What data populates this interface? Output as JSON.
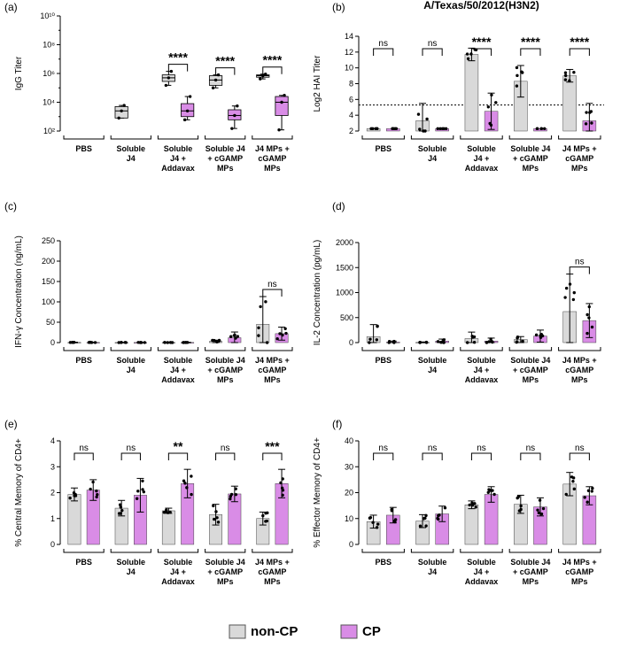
{
  "colors": {
    "noncp": "#d9d9d9",
    "cp": "#d98ce6",
    "axis": "#000000"
  },
  "legend": {
    "noncp": "non-CP",
    "cp": "CP"
  },
  "chart_data": [
    {
      "id": "a",
      "panel_label": "(a)",
      "type": "box",
      "title": "",
      "ylabel": "IgG Titer",
      "yscale": "log",
      "ylim": [
        100,
        10000000000
      ],
      "ytick_labels": [
        "10²",
        "10⁴",
        "10⁶",
        "10⁸",
        "10¹⁰"
      ],
      "groups": [
        "PBS",
        "Soluble J4",
        "Soluble J4 + Addavax",
        "Soluble J4 + cGAMP MPs",
        "J4 MPs + cGAMP MPs"
      ],
      "series": [
        {
          "name": "non-CP",
          "boxes": [
            null,
            [
              800,
              800,
              2500,
              5000,
              6000
            ],
            [
              150000,
              280000,
              500000,
              800000,
              1400000
            ],
            [
              100000,
              150000,
              350000,
              700000,
              800000
            ],
            [
              420000,
              550000,
              700000,
              800000,
              900000
            ]
          ]
        },
        {
          "name": "CP",
          "boxes": [
            null,
            null,
            [
              600,
              1000,
              2500,
              8000,
              25000
            ],
            [
              150,
              600,
              1200,
              3000,
              5500
            ],
            [
              120,
              1200,
              10000,
              25000,
              30000
            ]
          ]
        }
      ],
      "annotations": [
        null,
        null,
        "****",
        "****",
        "****"
      ]
    },
    {
      "id": "b",
      "panel_label": "(b)",
      "type": "bar",
      "title": "A/Texas/50/2012(H3N2)",
      "ylabel": "Log2 HAI Titer",
      "ylim": [
        2,
        14
      ],
      "yticks": [
        2,
        4,
        6,
        8,
        10,
        12,
        14
      ],
      "threshold": 5.3,
      "groups": [
        "PBS",
        "Soluble J4",
        "Soluble J4 + Addavax",
        "Soluble J4 + cGAMP MPs",
        "J4 MPs + cGAMP MPs"
      ],
      "series": [
        {
          "name": "non-CP",
          "values": [
            2.3,
            3.3,
            11.7,
            8.3,
            9.0
          ],
          "errors": [
            0,
            2.2,
            0.8,
            2.0,
            0.8
          ]
        },
        {
          "name": "CP",
          "values": [
            2.3,
            2.3,
            4.5,
            2.3,
            3.3
          ],
          "errors": [
            0,
            0,
            2.3,
            0,
            2.2
          ]
        }
      ],
      "annotations": [
        "ns",
        "ns",
        "****",
        "****",
        "****"
      ]
    },
    {
      "id": "c",
      "panel_label": "(c)",
      "type": "bar",
      "title": "",
      "ylabel": "IFN-γ Concentration (ng/mL)",
      "ylim": [
        0,
        250
      ],
      "yticks": [
        0,
        50,
        100,
        150,
        200,
        250
      ],
      "groups": [
        "PBS",
        "Soluble J4",
        "Soluble J4 + Addavax",
        "Soluble J4 + cGAMP MPs",
        "J4 MPs + cGAMP MPs"
      ],
      "series": [
        {
          "name": "non-CP",
          "values": [
            0.5,
            0.3,
            0.4,
            3,
            45
          ],
          "errors": [
            0.5,
            0.3,
            0.4,
            3,
            68
          ]
        },
        {
          "name": "CP",
          "values": [
            0.5,
            0.3,
            0.4,
            12,
            22
          ],
          "errors": [
            0.5,
            0.3,
            0.4,
            14,
            16
          ]
        }
      ],
      "annotations": [
        null,
        null,
        null,
        null,
        "ns"
      ]
    },
    {
      "id": "d",
      "panel_label": "(d)",
      "type": "bar",
      "title": "",
      "ylabel": "IL-2 Concentration (pg/mL)",
      "ylim": [
        0,
        2000
      ],
      "yticks": [
        0,
        500,
        1000,
        1500,
        2000
      ],
      "groups": [
        "PBS",
        "Soluble J4",
        "Soluble J4 + Addavax",
        "Soluble J4 + cGAMP MPs",
        "J4 MPs + cGAMP MPs"
      ],
      "series": [
        {
          "name": "non-CP",
          "values": [
            120,
            5,
            80,
            60,
            620
          ],
          "errors": [
            240,
            8,
            130,
            60,
            750
          ]
        },
        {
          "name": "CP",
          "values": [
            10,
            30,
            30,
            130,
            440
          ],
          "errors": [
            20,
            40,
            60,
            120,
            340
          ]
        }
      ],
      "annotations": [
        null,
        null,
        null,
        null,
        "ns"
      ]
    },
    {
      "id": "e",
      "panel_label": "(e)",
      "type": "bar",
      "title": "",
      "ylabel": "% Central  Memory of CD4+",
      "ylim": [
        0,
        4
      ],
      "yticks": [
        0,
        1,
        2,
        3,
        4
      ],
      "groups": [
        "PBS",
        "Soluble J4",
        "Soluble J4 + Addavax",
        "Soluble J4 + cGAMP MPs",
        "J4 MPs + cGAMP MPs"
      ],
      "series": [
        {
          "name": "non-CP",
          "values": [
            1.93,
            1.4,
            1.3,
            1.15,
            1.0
          ],
          "errors": [
            0.25,
            0.3,
            0.1,
            0.4,
            0.25
          ]
        },
        {
          "name": "CP",
          "values": [
            2.1,
            1.9,
            2.35,
            1.95,
            2.35
          ],
          "errors": [
            0.4,
            0.65,
            0.55,
            0.3,
            0.55
          ]
        }
      ],
      "annotations": [
        "ns",
        "ns",
        "**",
        "ns",
        "***"
      ]
    },
    {
      "id": "f",
      "panel_label": "(f)",
      "type": "bar",
      "title": "",
      "ylabel": "% Effector  Memory of CD4+",
      "ylim": [
        0,
        40
      ],
      "yticks": [
        0,
        10,
        20,
        30,
        40
      ],
      "groups": [
        "PBS",
        "Soluble J4",
        "Soluble J4 + Addavax",
        "Soluble J4 + cGAMP MPs",
        "J4 MPs + cGAMP MPs"
      ],
      "series": [
        {
          "name": "non-CP",
          "values": [
            8.8,
            9.0,
            15.3,
            15.5,
            23.3
          ],
          "errors": [
            2.5,
            2.5,
            1.5,
            3.5,
            4.5
          ]
        },
        {
          "name": "CP",
          "values": [
            11.3,
            11.8,
            19.3,
            14.5,
            18.8
          ],
          "errors": [
            3,
            3,
            3,
            3.5,
            3.5
          ]
        }
      ],
      "annotations": [
        "ns",
        "ns",
        "ns",
        "ns",
        "ns"
      ]
    }
  ]
}
